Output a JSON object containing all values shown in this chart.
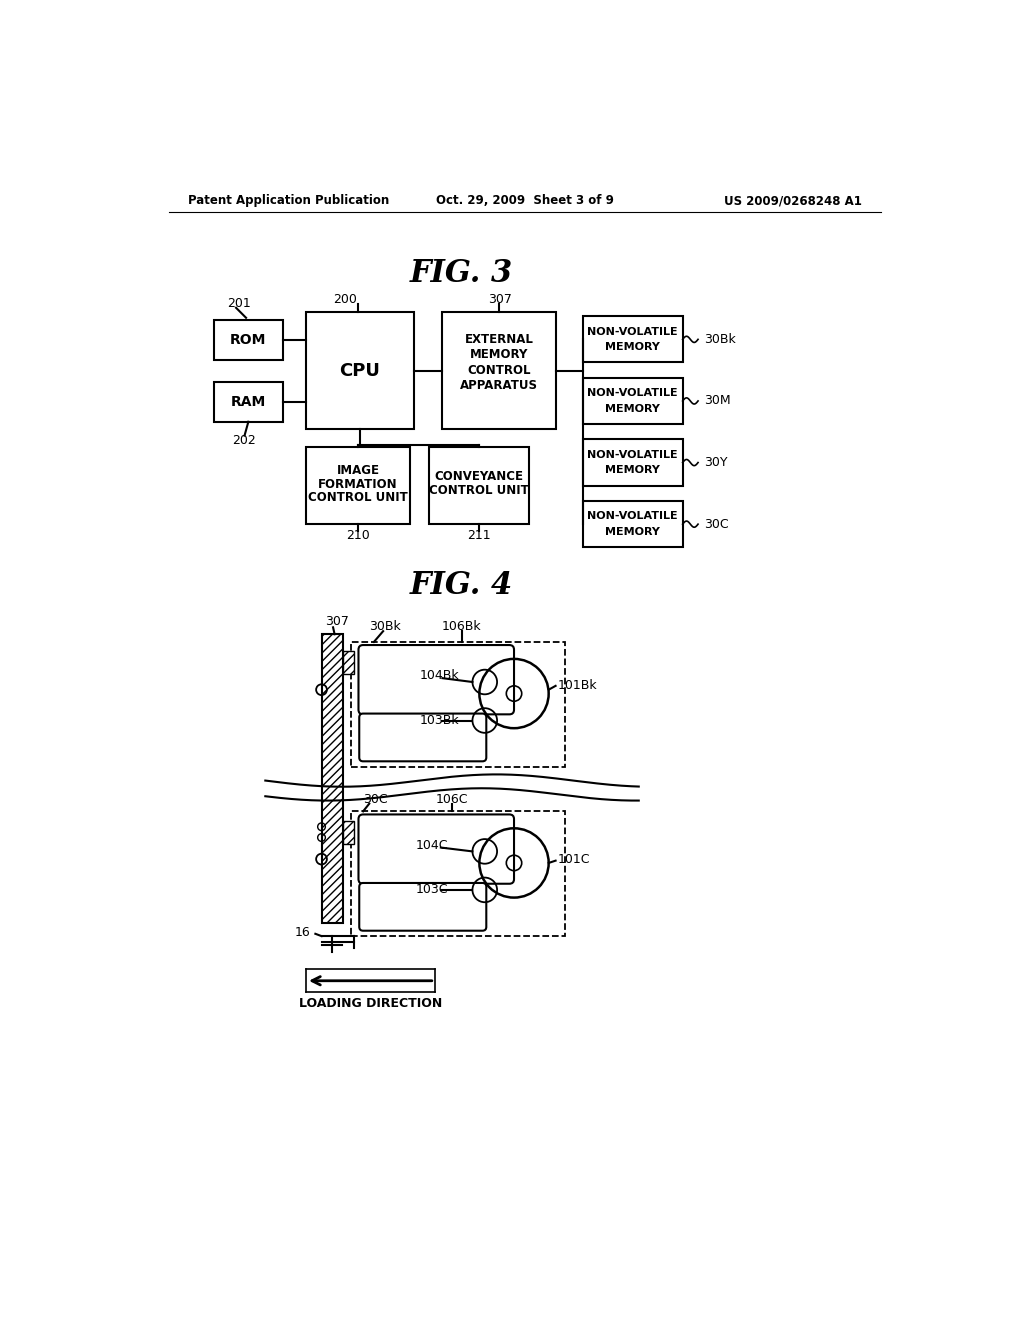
{
  "bg_color": "#ffffff",
  "header_left": "Patent Application Publication",
  "header_center": "Oct. 29, 2009  Sheet 3 of 9",
  "header_right": "US 2009/0268248 A1",
  "fig3_title": "FIG. 3",
  "fig4_title": "FIG. 4"
}
